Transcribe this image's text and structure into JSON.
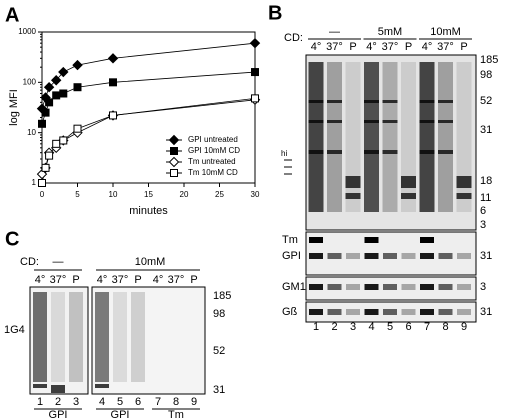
{
  "chart_data": {
    "type": "line",
    "panel_label": "A",
    "xlabel": "minutes",
    "ylabel": "log MFI",
    "x": [
      0,
      0.5,
      1,
      2,
      3,
      5,
      10,
      30
    ],
    "series": [
      {
        "name": "GPI untreated",
        "color": "#000000",
        "marker": "diamond",
        "filled": true,
        "values": [
          30,
          50,
          80,
          110,
          160,
          220,
          300,
          600
        ]
      },
      {
        "name": "GPI 10mM CD",
        "color": "#000000",
        "marker": "square",
        "filled": true,
        "values": [
          15,
          25,
          40,
          55,
          60,
          80,
          100,
          160
        ]
      },
      {
        "name": "Tm untreated",
        "color": "#000000",
        "marker": "diamond",
        "filled": false,
        "values": [
          1.5,
          2,
          4,
          5,
          7,
          10,
          22,
          45
        ]
      },
      {
        "name": "Tm 10mM CD",
        "color": "#000000",
        "marker": "square",
        "filled": false,
        "values": [
          1,
          2,
          3.5,
          6,
          7,
          12,
          22,
          48
        ]
      }
    ],
    "xlim": [
      0,
      30
    ],
    "xticks": [
      0,
      5,
      10,
      15,
      20,
      25,
      30
    ],
    "ylim": [
      1,
      1000
    ],
    "yticks": [
      1,
      10,
      100,
      1000
    ],
    "log_y": true,
    "legend": "lower right"
  },
  "panel_b": {
    "label": "B",
    "cd_label": "CD:",
    "groups": [
      "—",
      "5mM",
      "10mM"
    ],
    "lanes": [
      "4°",
      "37°",
      "P",
      "4°",
      "37°",
      "P",
      "4°",
      "37°",
      "P"
    ],
    "markers": [
      "185",
      "98",
      "52",
      "31",
      "18",
      "11",
      "6",
      "3"
    ],
    "hi": "hi",
    "blots": [
      {
        "labels": [
          "Tm",
          "GPI"
        ],
        "marker": "31"
      },
      {
        "labels": [
          "GM1"
        ],
        "marker": "3"
      },
      {
        "labels": [
          "Gß"
        ],
        "marker": "31"
      }
    ],
    "lane_numbers": [
      "1",
      "2",
      "3",
      "4",
      "5",
      "6",
      "7",
      "8",
      "9"
    ]
  },
  "panel_c": {
    "label": "C",
    "cd_label": "CD:",
    "groups": [
      "—",
      "10mM"
    ],
    "lanes": [
      "4°",
      "37°",
      "P",
      "4°",
      "37°",
      "P",
      "4°",
      "37°",
      "P"
    ],
    "antibody": "1G4",
    "markers": [
      "185",
      "98",
      "52",
      "31"
    ],
    "lane_numbers": [
      "1",
      "2",
      "3",
      "4",
      "5",
      "6",
      "7",
      "8",
      "9"
    ],
    "lane_groups": [
      "GPI",
      "GPI",
      "Tm"
    ]
  }
}
